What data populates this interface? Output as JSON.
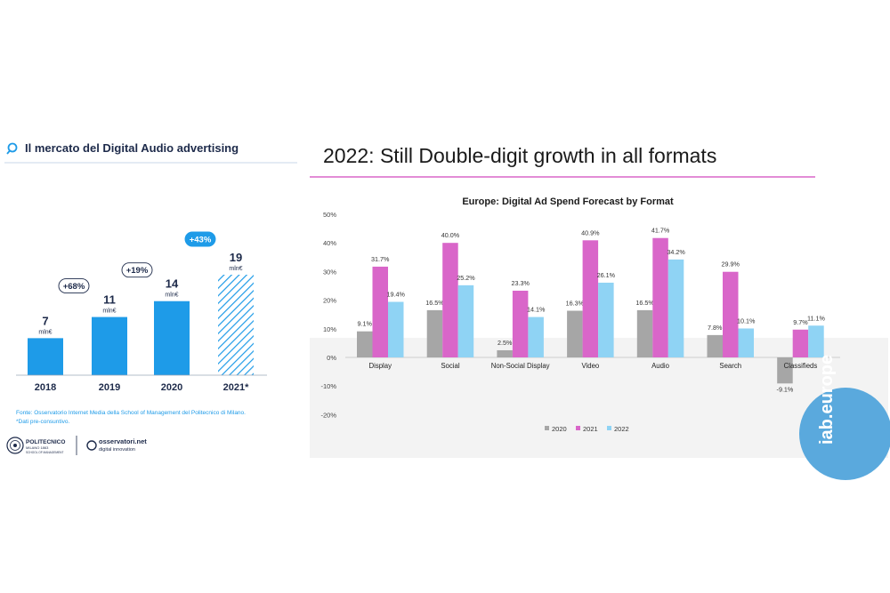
{
  "left_panel": {
    "title": "Il mercato del Digital Audio advertising",
    "icon": "magnifier-icon",
    "accent_color": "#1e9be8",
    "dark_color": "#1d2a4a",
    "footnote_line1": "Fonte: Osservatorio Internet Media della School of Management del Politecnico di Milano.",
    "footnote_line2": "*Dati pre-consuntivo.",
    "logo_polimi_line1": "POLITECNICO",
    "logo_polimi_line2": "MILANO 1863",
    "logo_polimi_line3": "SCHOOL OF MANAGEMENT",
    "logo_oss_line1": "osservatori.net",
    "logo_oss_line2": "digital innovation"
  },
  "right_panel": {
    "heading": "2022: Still Double-digit growth in all formats",
    "watermark": "iab.europe"
  },
  "chart_data": [
    {
      "type": "bar",
      "categories": [
        "2018",
        "2019",
        "2020",
        "2021*"
      ],
      "values": [
        7,
        11,
        14,
        19
      ],
      "value_labels": [
        "7",
        "11",
        "14",
        "19"
      ],
      "unit_label": "mln€",
      "growth_labels": [
        "+68%",
        "+19%",
        "+43%"
      ],
      "hatched": [
        false,
        false,
        false,
        true
      ],
      "ylim": [
        0,
        19
      ]
    },
    {
      "type": "bar",
      "title": "Europe: Digital Ad Spend Forecast by Format",
      "categories": [
        "Display",
        "Social",
        "Non-Social Display",
        "Video",
        "Audio",
        "Search",
        "Classifieds"
      ],
      "series": [
        {
          "name": "2020",
          "color": "#a6a6a6",
          "values": [
            9.1,
            16.5,
            2.5,
            16.3,
            16.5,
            7.8,
            -9.1
          ]
        },
        {
          "name": "2021",
          "color": "#d966c9",
          "values": [
            31.7,
            40.0,
            23.3,
            40.9,
            41.7,
            29.9,
            9.7
          ]
        },
        {
          "name": "2022",
          "color": "#8fd3f4",
          "values": [
            19.4,
            25.2,
            14.1,
            26.1,
            34.2,
            10.1,
            11.1
          ]
        }
      ],
      "data_labels": [
        [
          "9.1%",
          "16.5%",
          "2.5%",
          "16.3%",
          "16.5%",
          "7.8%",
          "-9.1%"
        ],
        [
          "31.7%",
          "40.0%",
          "23.3%",
          "40.9%",
          "41.7%",
          "29.9%",
          "9.7%"
        ],
        [
          "19.4%",
          "25.2%",
          "14.1%",
          "26.1%",
          "34.2%",
          "10.1%",
          "11.1%"
        ]
      ],
      "ylim": [
        -20,
        50
      ],
      "yticks": [
        50,
        40,
        30,
        20,
        10,
        0,
        -10,
        -20
      ],
      "ytick_labels": [
        "50%",
        "40%",
        "30%",
        "20%",
        "10%",
        "0%",
        "-10%",
        "-20%"
      ],
      "legend_position": "bottom",
      "grid": false
    }
  ]
}
